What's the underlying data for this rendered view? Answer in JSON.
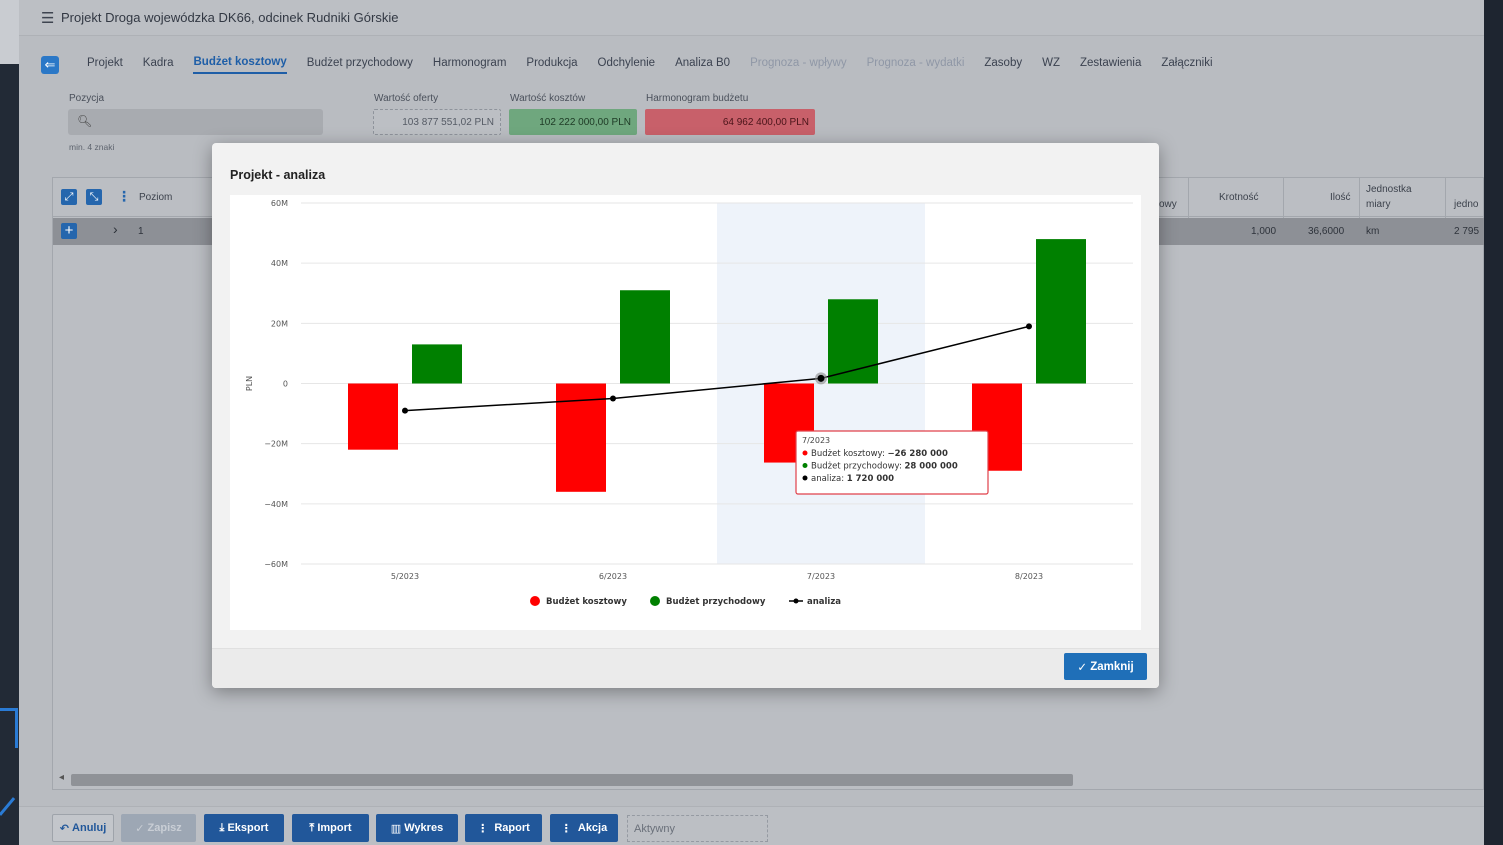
{
  "app": {
    "title": "Projekt Droga wojewódzka DK66, odcinek Rudniki Górskie",
    "menu_icon": "hamburger-icon",
    "back_icon": "back-arrow-icon"
  },
  "tabs": [
    {
      "label": "Projekt",
      "state": "normal"
    },
    {
      "label": "Kadra",
      "state": "normal"
    },
    {
      "label": "Budżet kosztowy",
      "state": "active"
    },
    {
      "label": "Budżet przychodowy",
      "state": "normal"
    },
    {
      "label": "Harmonogram",
      "state": "normal"
    },
    {
      "label": "Produkcja",
      "state": "normal"
    },
    {
      "label": "Odchylenie",
      "state": "normal"
    },
    {
      "label": "Analiza B0",
      "state": "normal"
    },
    {
      "label": "Prognoza - wpływy",
      "state": "disabled"
    },
    {
      "label": "Prognoza - wydatki",
      "state": "disabled"
    },
    {
      "label": "Zasoby",
      "state": "normal"
    },
    {
      "label": "WZ",
      "state": "normal"
    },
    {
      "label": "Zestawienia",
      "state": "normal"
    },
    {
      "label": "Załączniki",
      "state": "normal"
    }
  ],
  "filters": {
    "position_label": "Pozycja",
    "search_value": "",
    "search_hint": "min. 4 znaki",
    "offer_label": "Wartość oferty",
    "offer_value": "103 877 551,02 PLN",
    "cost_label": "Wartość kosztów",
    "cost_value": "102 222 000,00 PLN",
    "schedule_label": "Harmonogram budżetu",
    "schedule_value": "64 962 400,00 PLN"
  },
  "grid": {
    "columns": {
      "poziom": "Poziom",
      "partial": "owy",
      "krotnosc": "Krotność",
      "ilosc": "Ilość",
      "jednostka_line1": "Jednostka",
      "jednostka_line2": "miary",
      "jedno": "jedno"
    },
    "row": {
      "poziom": "1",
      "krotnosc": "1,000",
      "ilosc": "36,6000",
      "jednostka": "km",
      "jedno": "2 795"
    }
  },
  "footer": {
    "anuluj": "Anuluj",
    "zapisz": "Zapisz",
    "eksport": "Eksport",
    "import": "Import",
    "wykres": "Wykres",
    "raport": "Raport",
    "akcja": "Akcja",
    "status": "Aktywny"
  },
  "modal": {
    "title": "Projekt - analiza",
    "close_label": "Zamknij",
    "tooltip": {
      "header": "7/2023",
      "line1_label": "Budżet kosztowy:",
      "line1_value": "−26 280 000",
      "line2_label": "Budżet przychodowy:",
      "line2_value": "28 000 000",
      "line3_label": "analiza:",
      "line3_value": "1 720 000"
    }
  },
  "chart_data": {
    "type": "bar",
    "categories": [
      "5/2023",
      "6/2023",
      "7/2023",
      "8/2023"
    ],
    "series": [
      {
        "name": "Budżet kosztowy",
        "kind": "bar",
        "color": "#ff0000",
        "values": [
          -22000000,
          -36000000,
          -26280000,
          -29000000
        ]
      },
      {
        "name": "Budżet przychodowy",
        "kind": "bar",
        "color": "#008000",
        "values": [
          13000000,
          31000000,
          28000000,
          48000000
        ]
      },
      {
        "name": "analiza",
        "kind": "line",
        "color": "#000000",
        "values": [
          -9000000,
          -5000000,
          1720000,
          19000000
        ]
      }
    ],
    "ylabel": "PLN",
    "ylim": [
      -60000000,
      60000000
    ],
    "yticks": [
      {
        "v": 60000000,
        "label": "60M"
      },
      {
        "v": 40000000,
        "label": "40M"
      },
      {
        "v": 20000000,
        "label": "20M"
      },
      {
        "v": 0,
        "label": "0"
      },
      {
        "v": -20000000,
        "label": "−20M"
      },
      {
        "v": -40000000,
        "label": "−40M"
      },
      {
        "v": -60000000,
        "label": "−60M"
      }
    ],
    "highlight_category": "7/2023",
    "grid": true,
    "legend": "bottom"
  }
}
